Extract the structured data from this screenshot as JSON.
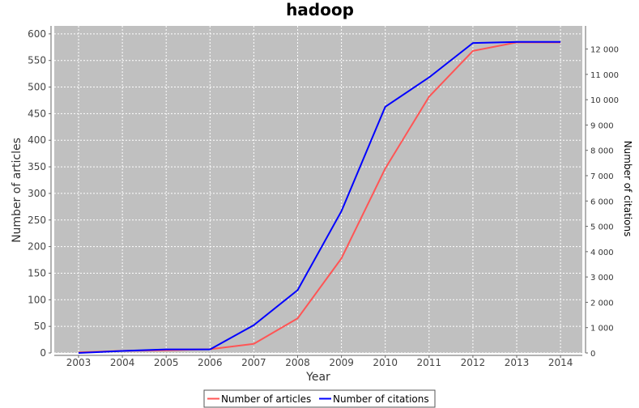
{
  "chart_data": {
    "type": "line",
    "title": "hadoop",
    "xlabel": "Year",
    "ylabel": "Number of articles",
    "y2label": "Number of citations",
    "x": [
      2003,
      2004,
      2005,
      2006,
      2007,
      2008,
      2009,
      2010,
      2011,
      2012,
      2013,
      2014
    ],
    "ylim": [
      0,
      615
    ],
    "y2lim": [
      0,
      12914
    ],
    "yticks": [
      0,
      50,
      100,
      150,
      200,
      250,
      300,
      350,
      400,
      450,
      500,
      550,
      600
    ],
    "y2ticks": [
      0,
      1000,
      2000,
      3000,
      4000,
      5000,
      6000,
      7000,
      8000,
      9000,
      10000,
      11000,
      12000
    ],
    "y2tick_labels": [
      "0",
      "1 000",
      "2 000",
      "3 000",
      "4 000",
      "5 000",
      "6 000",
      "7 000",
      "8 000",
      "9 000",
      "10 000",
      "11 000",
      "12 000"
    ],
    "grid": true,
    "legend_position": "bottom",
    "series": [
      {
        "name": "Number of articles",
        "axis": "left",
        "color": "#ff5555",
        "values": [
          1,
          4,
          5,
          7,
          17,
          65,
          178,
          347,
          482,
          568,
          584,
          584
        ]
      },
      {
        "name": "Number of citations",
        "axis": "right",
        "color": "#0000ff",
        "values": [
          0,
          80,
          140,
          140,
          1100,
          2480,
          5600,
          9720,
          10880,
          12240,
          12280,
          12280
        ]
      }
    ]
  }
}
